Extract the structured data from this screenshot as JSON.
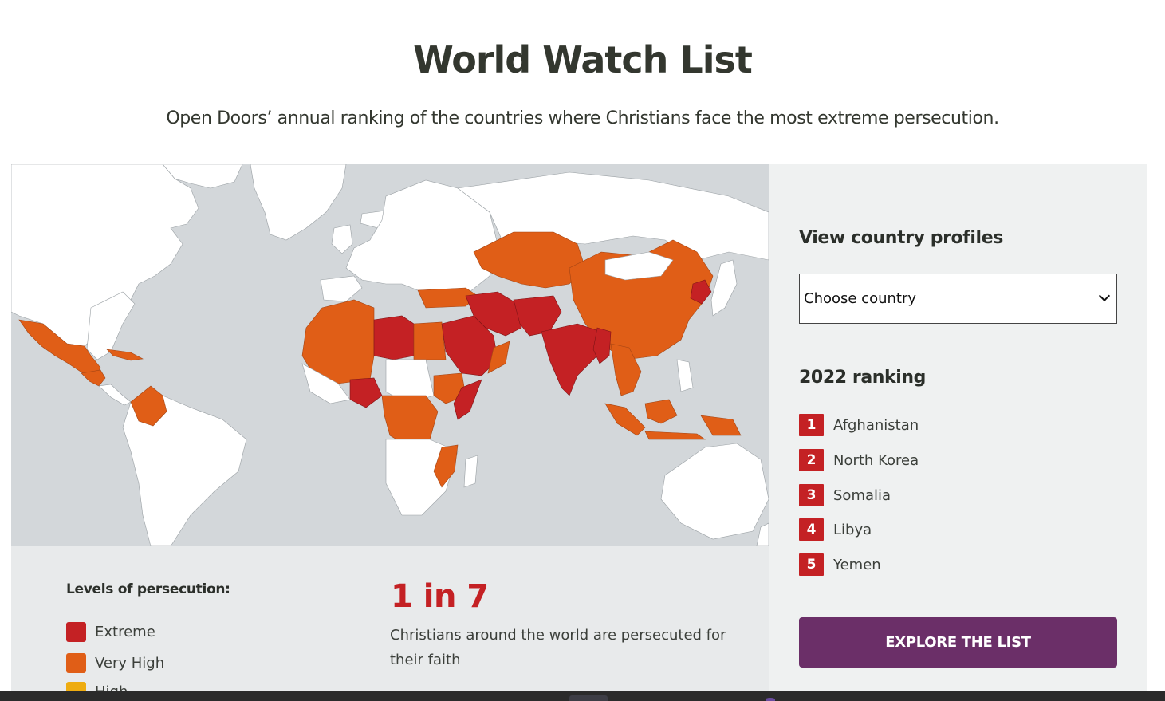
{
  "header": {
    "title": "World Watch List",
    "subtitle": "Open Doors’ annual ranking of the countries where Christians face the most extreme persecution."
  },
  "map": {
    "colors": {
      "ocean": "#d3d7da",
      "land": "#ffffff",
      "very_high": "#e05e17",
      "extreme": "#c42124"
    }
  },
  "legend": {
    "title": "Levels of persecution:",
    "items": [
      {
        "label": "Extreme",
        "color": "#c42124"
      },
      {
        "label": "Very High",
        "color": "#e05e17"
      },
      {
        "label": "High",
        "color": "#eeac10"
      }
    ]
  },
  "stat": {
    "figure": "1 in 7",
    "text": "Christians around the world are persecuted for their faith"
  },
  "sidebar": {
    "profiles_heading": "View country profiles",
    "select_value": "Choose country",
    "ranking_heading": "2022 ranking",
    "ranking": [
      {
        "rank": "1",
        "country": "Afghanistan"
      },
      {
        "rank": "2",
        "country": "North Korea"
      },
      {
        "rank": "3",
        "country": "Somalia"
      },
      {
        "rank": "4",
        "country": "Libya"
      },
      {
        "rank": "5",
        "country": "Yemen"
      }
    ],
    "explore_label": "EXPLORE THE LIST",
    "accent_color": "#6b2f68"
  }
}
